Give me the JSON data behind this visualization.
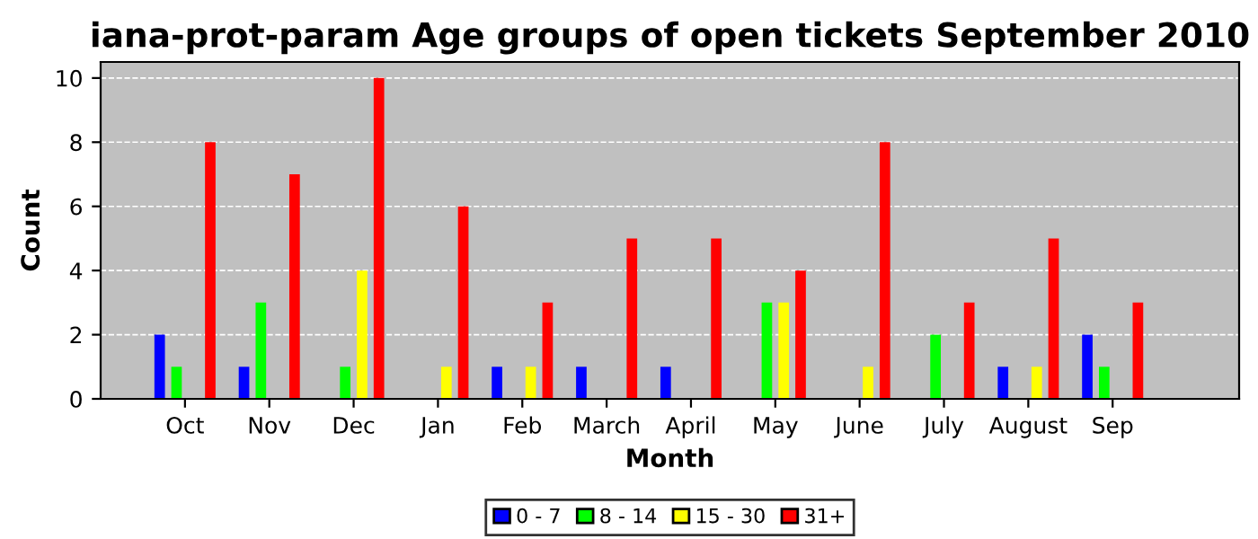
{
  "chart_data": {
    "type": "bar",
    "title": "iana-prot-param Age groups of open tickets September 2010",
    "xlabel": "Month",
    "ylabel": "Count",
    "categories": [
      "Oct",
      "Nov",
      "Dec",
      "Jan",
      "Feb",
      "March",
      "April",
      "May",
      "June",
      "July",
      "August",
      "Sep"
    ],
    "series": [
      {
        "name": "0 - 7",
        "color": "#0000ff",
        "values": [
          2,
          1,
          0,
          0,
          1,
          1,
          1,
          0,
          0,
          0,
          1,
          2
        ]
      },
      {
        "name": "8 - 14",
        "color": "#00ff00",
        "values": [
          1,
          3,
          1,
          0,
          0,
          0,
          0,
          3,
          0,
          2,
          0,
          1
        ]
      },
      {
        "name": "15 - 30",
        "color": "#ffff00",
        "values": [
          0,
          0,
          4,
          1,
          1,
          0,
          0,
          3,
          1,
          0,
          1,
          0
        ]
      },
      {
        "name": "31+",
        "color": "#ff0000",
        "values": [
          8,
          7,
          10,
          6,
          3,
          5,
          5,
          4,
          8,
          3,
          5,
          3
        ]
      }
    ],
    "ylim": [
      0,
      10.5
    ],
    "yticks": [
      0,
      2,
      4,
      6,
      8,
      10
    ],
    "grid": "y",
    "legend": "bottom"
  }
}
